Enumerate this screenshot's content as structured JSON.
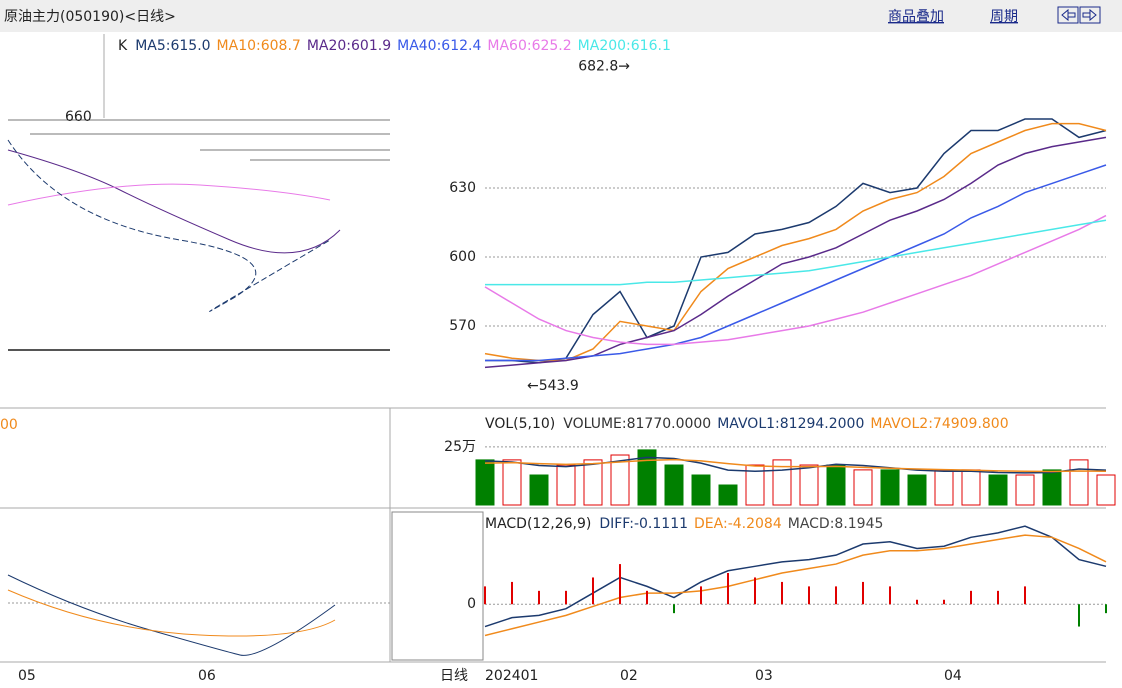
{
  "header": {
    "title": "原油主力(050190)<日线>",
    "links": [
      "商品叠加",
      "周期"
    ],
    "period_label": "日线"
  },
  "left_pane": {
    "x_labels": [
      "05",
      "06"
    ],
    "tick": "660",
    "volume_label": "00"
  },
  "chart_data": [
    {
      "type": "line",
      "prefix": "K",
      "categories": [
        "202401",
        null,
        null,
        null,
        null,
        "02",
        null,
        null,
        null,
        null,
        "03",
        null,
        null,
        null,
        null,
        null,
        null,
        "04",
        null,
        null,
        null,
        null,
        null,
        null
      ],
      "ylim": [
        540,
        690
      ],
      "yticks": [
        570,
        600,
        630
      ],
      "grid": true,
      "high": {
        "value": 682.8,
        "label": "682.8→",
        "index": 5
      },
      "low": {
        "value": 543.9,
        "label": "←543.9",
        "index": 2
      },
      "series": [
        {
          "name": "MA5:615.0",
          "color": "#1c3a6e",
          "values": [
            555,
            555,
            554,
            556,
            575,
            585,
            565,
            570,
            600,
            602,
            610,
            612,
            615,
            622,
            632,
            628,
            630,
            645,
            655,
            655,
            660,
            660,
            652,
            655
          ]
        },
        {
          "name": "MA10:608.7",
          "color": "#f08a1c",
          "values": [
            558,
            556,
            555,
            555,
            560,
            572,
            570,
            568,
            585,
            595,
            600,
            605,
            608,
            612,
            620,
            625,
            628,
            635,
            645,
            650,
            655,
            658,
            658,
            655
          ]
        },
        {
          "name": "MA20:601.9",
          "color": "#5a2a8a",
          "values": [
            552,
            553,
            554,
            555,
            557,
            562,
            565,
            568,
            575,
            583,
            590,
            597,
            600,
            604,
            610,
            616,
            620,
            625,
            632,
            640,
            645,
            648,
            650,
            652
          ]
        },
        {
          "name": "MA40:612.4",
          "color": "#3a5ae8",
          "values": [
            555,
            555,
            555,
            556,
            557,
            558,
            560,
            562,
            565,
            570,
            575,
            580,
            585,
            590,
            595,
            600,
            605,
            610,
            617,
            622,
            628,
            632,
            636,
            640
          ]
        },
        {
          "name": "MA60:625.2",
          "color": "#e87ae8",
          "values": [
            587,
            580,
            573,
            568,
            565,
            563,
            562,
            562,
            563,
            564,
            566,
            568,
            570,
            573,
            576,
            580,
            584,
            588,
            592,
            597,
            602,
            607,
            612,
            618
          ]
        },
        {
          "name": "MA200:616.1",
          "color": "#4ae8e8",
          "values": [
            588,
            588,
            588,
            588,
            588,
            588,
            589,
            589,
            590,
            591,
            592,
            593,
            594,
            596,
            598,
            600,
            602,
            604,
            606,
            608,
            610,
            612,
            614,
            616
          ]
        }
      ]
    },
    {
      "type": "bar",
      "prefix": "VOL(5,10)",
      "ylim": [
        0,
        400000
      ],
      "yticks": [
        {
          "value": 250000,
          "label": "25万"
        }
      ],
      "series": [
        {
          "name": "VOLUME:81770.0000",
          "color": "#333333",
          "colors": [
            "#008000",
            "#e00000",
            "#008000",
            "#e00000",
            "#e00000",
            "#e00000",
            "#008000",
            "#008000",
            "#008000",
            "#008000",
            "#e00000",
            "#e00000",
            "#e00000",
            "#008000",
            "#e00000",
            "#008000",
            "#008000",
            "#e00000",
            "#e00000",
            "#008000",
            "#e00000",
            "#008000",
            "#e00000",
            "#e00000"
          ],
          "values": [
            194000,
            194000,
            129000,
            172000,
            194000,
            215000,
            237000,
            172000,
            129000,
            86000,
            172000,
            194000,
            172000,
            172000,
            151000,
            151000,
            129000,
            151000,
            151000,
            129000,
            129000,
            151000,
            194000,
            129000
          ]
        },
        {
          "name": "MAVOL1:81294.2000",
          "color": "#1c3a6e",
          "values": [
            190000,
            185000,
            170000,
            165000,
            175000,
            190000,
            205000,
            200000,
            180000,
            150000,
            145000,
            150000,
            160000,
            175000,
            170000,
            160000,
            150000,
            145000,
            145000,
            140000,
            138000,
            140000,
            155000,
            150000
          ]
        },
        {
          "name": "MAVOL2:74909.800",
          "color": "#f08a1c",
          "values": [
            180000,
            182000,
            178000,
            175000,
            178000,
            185000,
            192000,
            195000,
            190000,
            178000,
            168000,
            165000,
            165000,
            166000,
            162000,
            158000,
            155000,
            152000,
            150000,
            147000,
            145000,
            144000,
            146000,
            145000
          ]
        }
      ]
    },
    {
      "type": "macd",
      "prefix": "MACD(12,26,9)",
      "ylim": [
        -25,
        40
      ],
      "yticks": [
        0
      ],
      "series": [
        {
          "name": "DIFF:-0.1111",
          "color": "#1c3a6e",
          "values": [
            -10,
            -6,
            -5,
            -2,
            5,
            12,
            8,
            3,
            10,
            15,
            17,
            19,
            20,
            22,
            27,
            28,
            25,
            26,
            30,
            32,
            35,
            30,
            20,
            17
          ]
        },
        {
          "name": "DEA:-4.2084",
          "color": "#f08a1c",
          "values": [
            -14,
            -11,
            -8,
            -5,
            -1,
            3,
            5,
            5,
            6,
            8,
            11,
            14,
            16,
            18,
            22,
            24,
            24,
            25,
            27,
            29,
            31,
            30,
            25,
            19
          ]
        },
        {
          "name": "MACD:8.1945",
          "color": "#444444",
          "values": [
            8,
            10,
            6,
            6,
            12,
            18,
            6,
            -4,
            8,
            14,
            12,
            10,
            8,
            8,
            10,
            8,
            2,
            2,
            6,
            6,
            8,
            0,
            -10,
            -4
          ]
        }
      ]
    }
  ]
}
